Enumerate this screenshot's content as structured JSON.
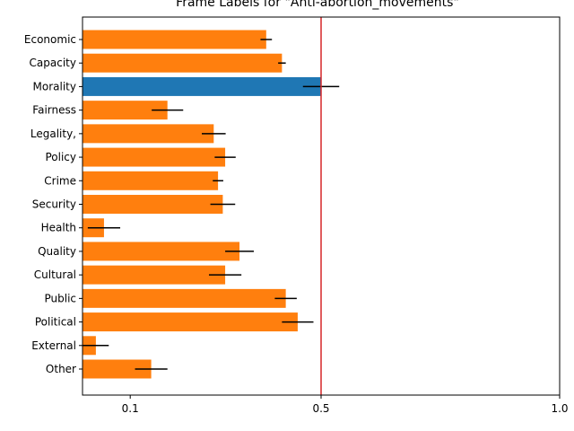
{
  "chart_data": {
    "type": "bar",
    "orientation": "horizontal",
    "title": "Frame Labels for \"Anti-abortion_movements\"",
    "xlabel": "",
    "ylabel": "",
    "xlim": [
      0.0,
      1.0
    ],
    "x_ticks": [
      0.1,
      0.5,
      1.0
    ],
    "x_tick_labels": [
      "0.1",
      "0.5",
      "1.0"
    ],
    "reference_line": {
      "x": 0.5,
      "color": "#d62728"
    },
    "grid": false,
    "legend": "none",
    "categories": [
      "Economic",
      "Capacity",
      "Morality",
      "Fairness",
      "Legality,",
      "Policy",
      "Crime",
      "Security",
      "Health",
      "Quality",
      "Cultural",
      "Public",
      "Political",
      "External",
      "Other"
    ],
    "values": [
      0.385,
      0.418,
      0.5,
      0.178,
      0.275,
      0.299,
      0.284,
      0.294,
      0.045,
      0.329,
      0.299,
      0.426,
      0.451,
      0.028,
      0.144
    ],
    "errors": [
      0.012,
      0.008,
      0.038,
      0.033,
      0.025,
      0.022,
      0.011,
      0.026,
      0.034,
      0.03,
      0.034,
      0.023,
      0.033,
      0.027,
      0.034
    ],
    "highlight_index": 2,
    "colors": {
      "default": "#ff7f0e",
      "highlight": "#1f77b4",
      "error": "#000000"
    }
  }
}
